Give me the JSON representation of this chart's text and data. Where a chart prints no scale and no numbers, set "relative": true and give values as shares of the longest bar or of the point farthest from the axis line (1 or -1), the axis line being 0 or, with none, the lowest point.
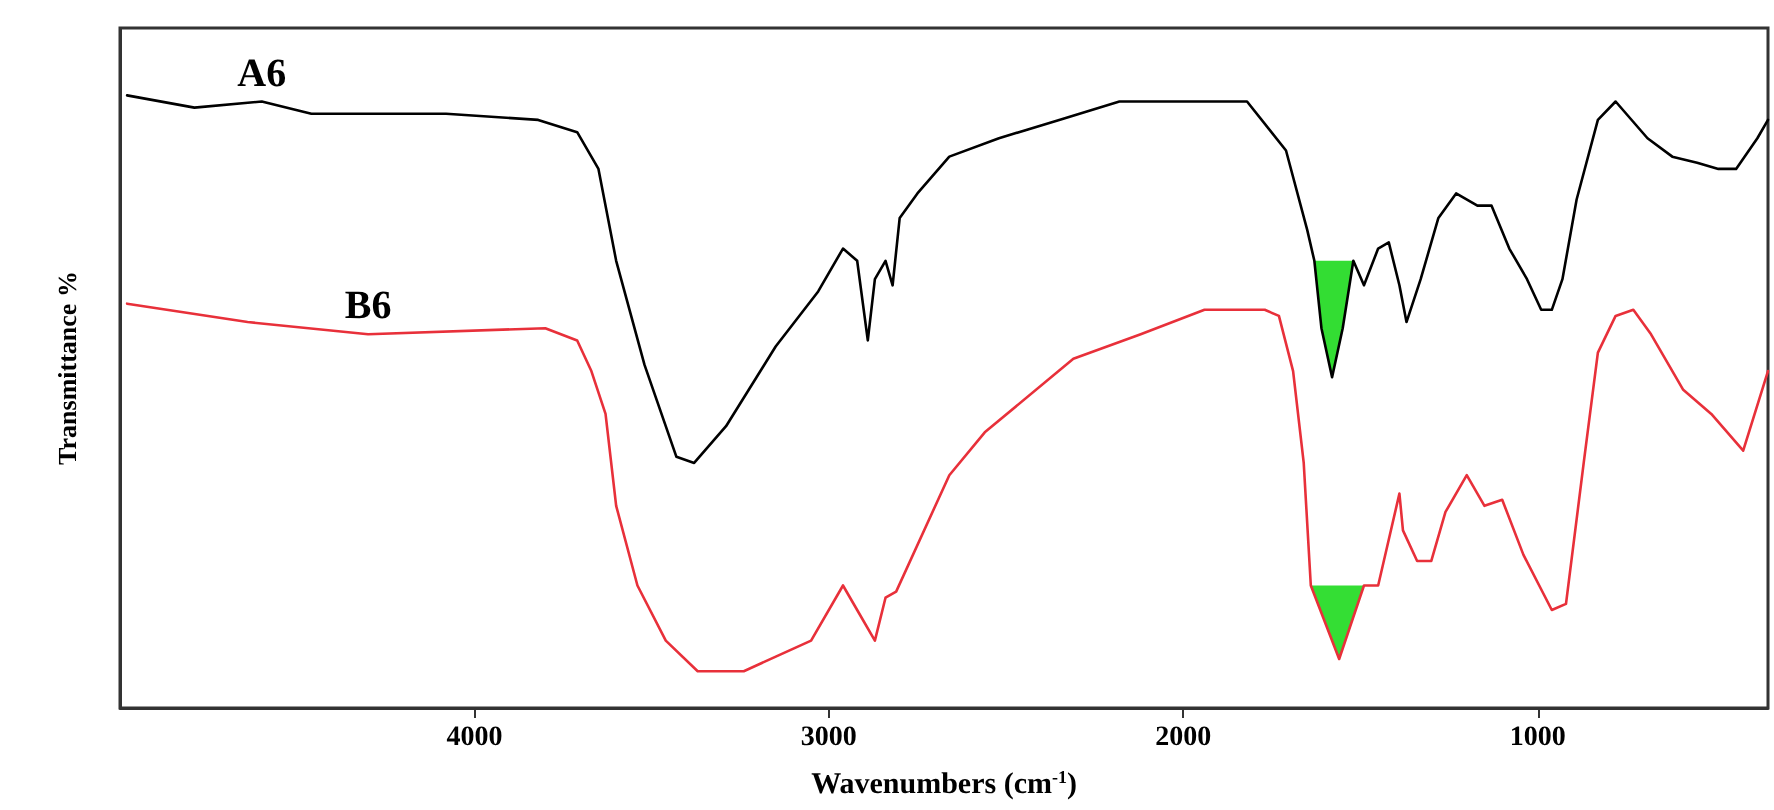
{
  "chart_data": {
    "type": "line",
    "relative": true,
    "xlabel": "Wavenumbers (cm$^{-1}$)",
    "ylabel": "Transmittance %",
    "xlim": [
      5000,
      350
    ],
    "xticks": [
      4000,
      3000,
      2000,
      1000
    ],
    "legend": false,
    "grid": false,
    "marker": "none",
    "line_style": "solid",
    "series": [
      {
        "name": "A6",
        "color": "#000000",
        "x": [
          4980,
          4790,
          4600,
          4460,
          4080,
          3820,
          3710,
          3650,
          3600,
          3520,
          3430,
          3380,
          3290,
          3150,
          3030,
          2960,
          2920,
          2890,
          2870,
          2840,
          2820,
          2800,
          2750,
          2660,
          2520,
          2350,
          2180,
          1960,
          1820,
          1710,
          1650,
          1630,
          1610,
          1580,
          1550,
          1520,
          1490,
          1450,
          1420,
          1390,
          1370,
          1330,
          1280,
          1230,
          1170,
          1130,
          1080,
          1030,
          990,
          960,
          930,
          890,
          830,
          780,
          690,
          620,
          550,
          490,
          440,
          380,
          350
        ],
        "values": [
          1.0,
          0.98,
          0.99,
          0.97,
          0.97,
          0.96,
          0.94,
          0.88,
          0.73,
          0.56,
          0.41,
          0.4,
          0.46,
          0.59,
          0.68,
          0.75,
          0.73,
          0.6,
          0.7,
          0.73,
          0.69,
          0.8,
          0.84,
          0.9,
          0.93,
          0.96,
          0.99,
          0.99,
          0.99,
          0.91,
          0.78,
          0.73,
          0.62,
          0.54,
          0.62,
          0.73,
          0.69,
          0.75,
          0.76,
          0.69,
          0.63,
          0.7,
          0.8,
          0.84,
          0.82,
          0.82,
          0.75,
          0.7,
          0.65,
          0.65,
          0.7,
          0.83,
          0.96,
          0.99,
          0.93,
          0.9,
          0.89,
          0.88,
          0.88,
          0.93,
          0.96
        ],
        "lower": [
          null,
          null,
          null,
          null,
          null,
          null,
          null,
          null,
          null,
          null,
          null,
          null,
          null,
          null,
          null,
          null,
          null,
          null,
          null,
          null,
          null,
          null,
          null,
          null,
          null,
          null,
          null,
          null,
          null,
          null,
          null,
          0.73,
          0.62,
          0.54,
          0.62,
          0.73,
          null,
          null,
          null,
          null,
          null,
          null,
          null,
          null,
          null,
          null,
          null,
          null,
          null,
          null,
          null,
          null,
          null,
          null,
          null,
          null,
          null,
          null,
          null,
          null,
          null
        ],
        "upper": [
          null,
          null,
          null,
          null,
          null,
          null,
          null,
          null,
          null,
          null,
          null,
          null,
          null,
          null,
          null,
          null,
          null,
          null,
          null,
          null,
          null,
          null,
          null,
          null,
          null,
          null,
          null,
          null,
          null,
          null,
          null,
          0.73,
          0.73,
          0.73,
          0.73,
          0.73,
          null,
          null,
          null,
          null,
          null,
          null,
          null,
          null,
          null,
          null,
          null,
          null,
          null,
          null,
          null,
          null,
          null,
          null,
          null,
          null,
          null,
          null,
          null,
          null,
          null
        ]
      },
      {
        "name": "B6",
        "color": "#e8303a",
        "x": [
          4980,
          4640,
          4300,
          3800,
          3710,
          3670,
          3630,
          3600,
          3540,
          3460,
          3370,
          3240,
          3050,
          2960,
          2920,
          2870,
          2840,
          2810,
          2660,
          2560,
          2310,
          2120,
          1940,
          1770,
          1730,
          1690,
          1660,
          1640,
          1560,
          1490,
          1450,
          1390,
          1380,
          1340,
          1300,
          1260,
          1200,
          1150,
          1100,
          1040,
          960,
          920,
          870,
          830,
          780,
          730,
          680,
          590,
          510,
          420,
          350
        ],
        "values": [
          0.66,
          0.63,
          0.61,
          0.62,
          0.6,
          0.55,
          0.48,
          0.33,
          0.2,
          0.11,
          0.06,
          0.06,
          0.11,
          0.2,
          0.16,
          0.11,
          0.18,
          0.19,
          0.38,
          0.45,
          0.57,
          0.61,
          0.65,
          0.65,
          0.64,
          0.55,
          0.4,
          0.2,
          0.08,
          0.2,
          0.2,
          0.35,
          0.29,
          0.24,
          0.24,
          0.32,
          0.38,
          0.33,
          0.34,
          0.25,
          0.16,
          0.17,
          0.4,
          0.58,
          0.64,
          0.65,
          0.61,
          0.52,
          0.48,
          0.42,
          0.55
        ],
        "lower": [
          null,
          null,
          null,
          null,
          null,
          null,
          null,
          null,
          null,
          null,
          null,
          null,
          null,
          null,
          null,
          null,
          null,
          null,
          null,
          null,
          null,
          null,
          null,
          null,
          null,
          null,
          null,
          0.2,
          0.08,
          0.2,
          null,
          null,
          null,
          null,
          null,
          null,
          null,
          null,
          null,
          null,
          null,
          null,
          null,
          null,
          null,
          null,
          null,
          null,
          null,
          null,
          null
        ],
        "upper": [
          null,
          null,
          null,
          null,
          null,
          null,
          null,
          null,
          null,
          null,
          null,
          null,
          null,
          null,
          null,
          null,
          null,
          null,
          null,
          null,
          null,
          null,
          null,
          null,
          null,
          null,
          null,
          0.2,
          0.2,
          0.2,
          null,
          null,
          null,
          null,
          null,
          null,
          null,
          null,
          null,
          null,
          null,
          null,
          null,
          null,
          null,
          null,
          null,
          null,
          null,
          null,
          null
        ]
      }
    ]
  }
}
